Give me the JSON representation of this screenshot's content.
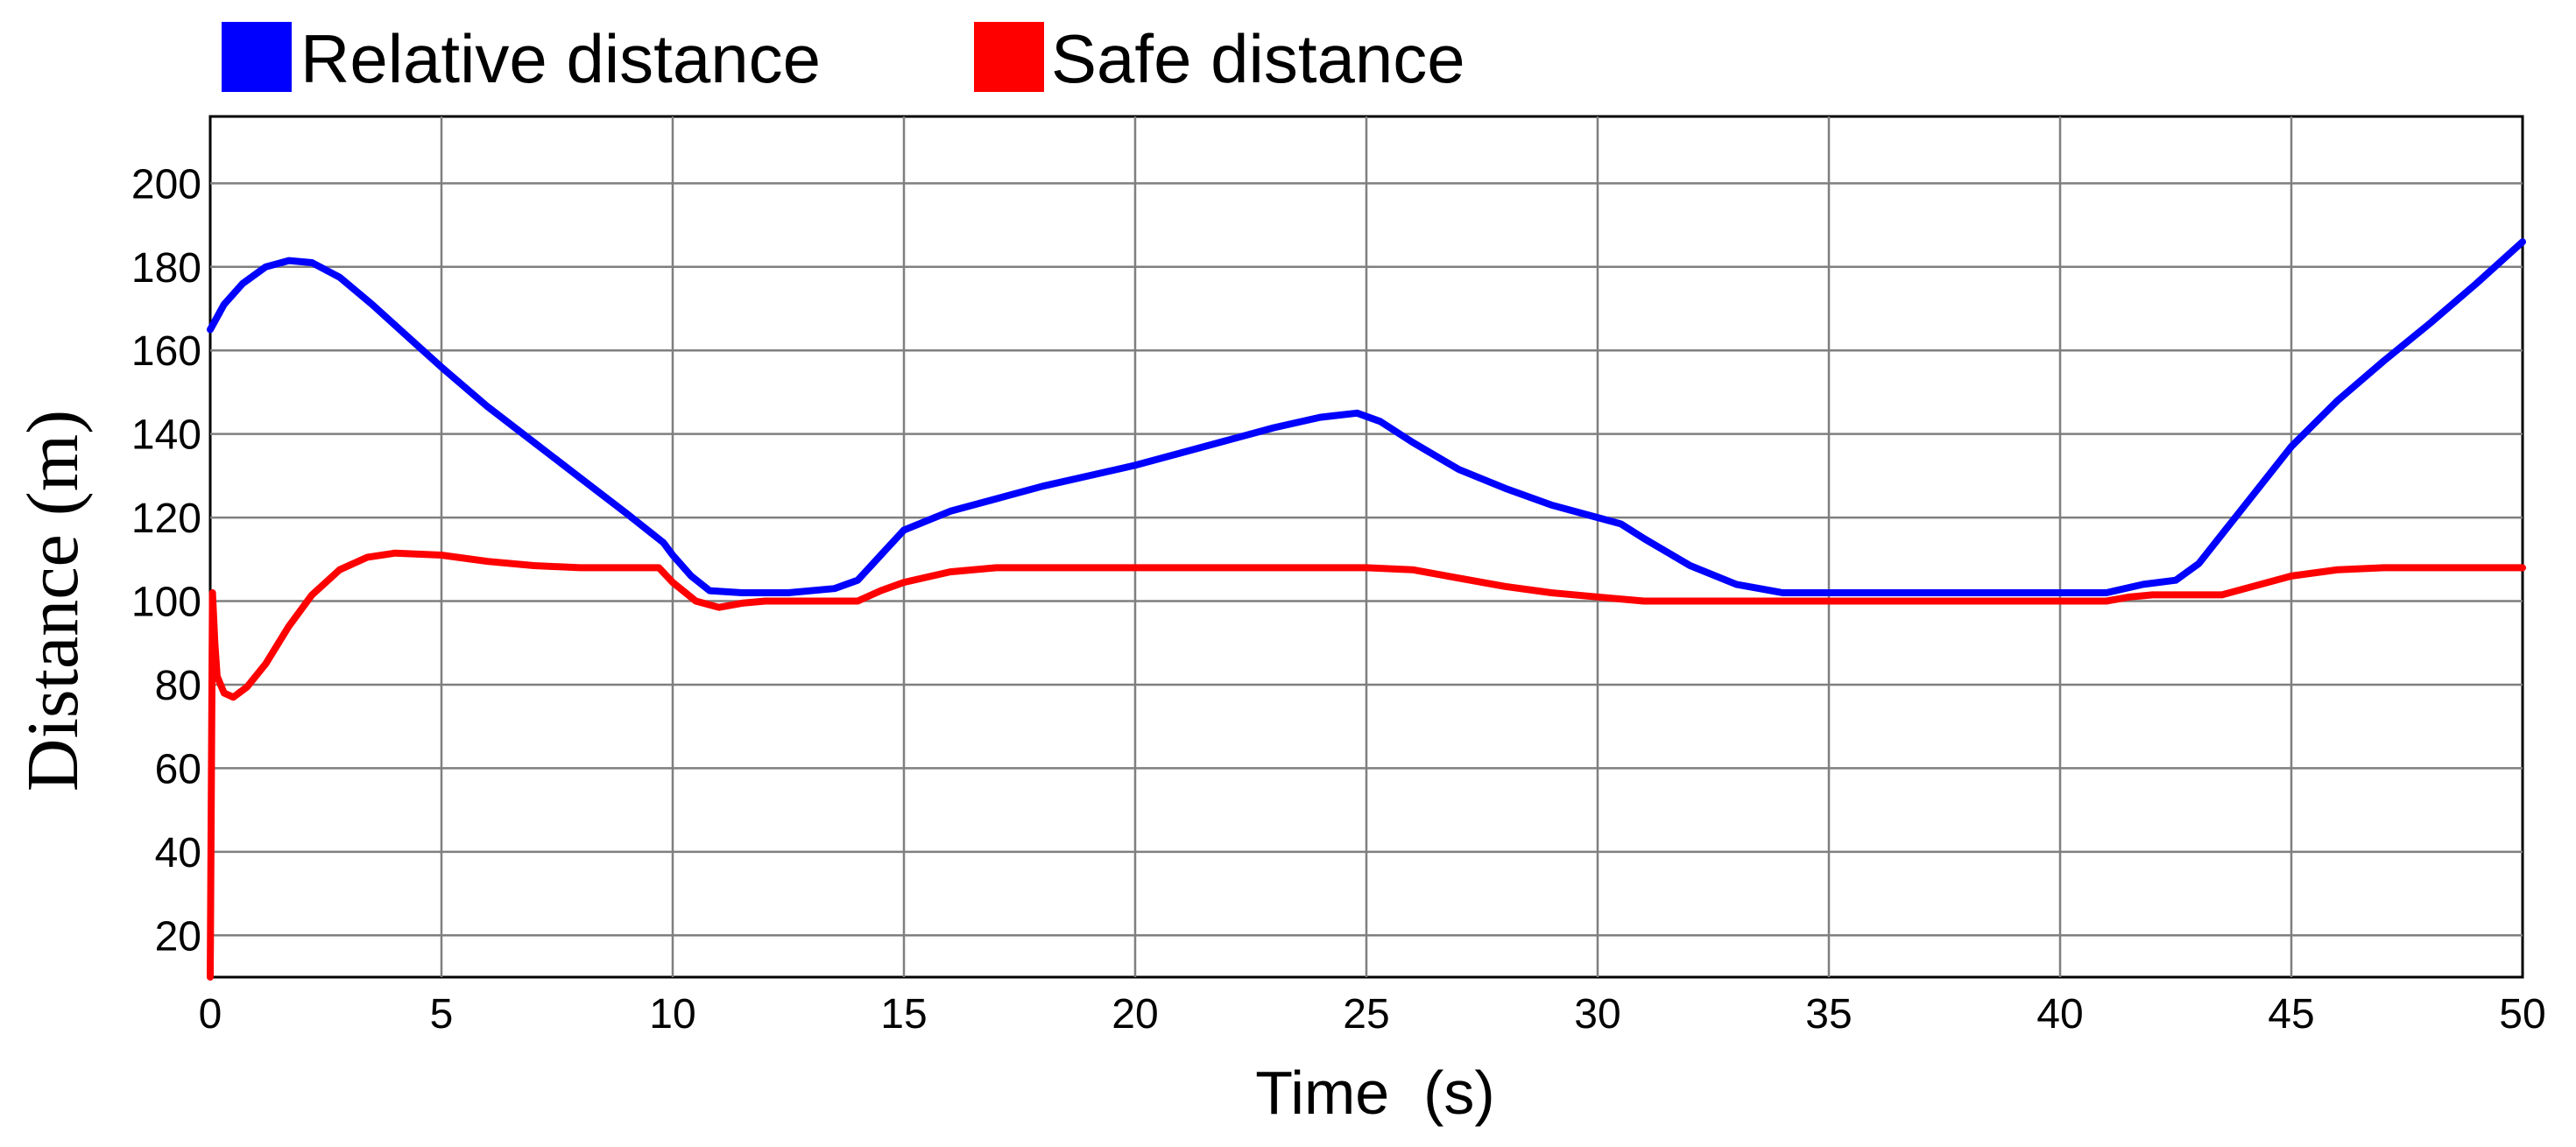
{
  "chart_data": {
    "type": "line",
    "title": "",
    "xlabel": "Time  (s)",
    "ylabel": "Distance (m)",
    "xlim": [
      0,
      50
    ],
    "ylim": [
      10,
      216
    ],
    "xticks": [
      0,
      5,
      10,
      15,
      20,
      25,
      30,
      35,
      40,
      45,
      50
    ],
    "yticks": [
      20,
      40,
      60,
      80,
      100,
      120,
      140,
      160,
      180,
      200
    ],
    "grid": true,
    "legend": "top-left, above plot, horizontal",
    "series": [
      {
        "name": "Relative distance",
        "color": "#0000ff",
        "points": [
          [
            0,
            165
          ],
          [
            0.3,
            171
          ],
          [
            0.7,
            176
          ],
          [
            1.2,
            180
          ],
          [
            1.7,
            181.5
          ],
          [
            2.2,
            181
          ],
          [
            2.8,
            177.5
          ],
          [
            3.5,
            171
          ],
          [
            4.5,
            161
          ],
          [
            5,
            156
          ],
          [
            6,
            146.5
          ],
          [
            7,
            138
          ],
          [
            8,
            129.5
          ],
          [
            9,
            121
          ],
          [
            9.8,
            114
          ],
          [
            10,
            111
          ],
          [
            10.4,
            106
          ],
          [
            10.8,
            102.5
          ],
          [
            11.5,
            102
          ],
          [
            12.5,
            102
          ],
          [
            13.5,
            103
          ],
          [
            14,
            105
          ],
          [
            14.5,
            111
          ],
          [
            15,
            117
          ],
          [
            16,
            121.5
          ],
          [
            17,
            124.5
          ],
          [
            18,
            127.5
          ],
          [
            19,
            130
          ],
          [
            20,
            132.5
          ],
          [
            21,
            135.5
          ],
          [
            22,
            138.5
          ],
          [
            23,
            141.5
          ],
          [
            24,
            144
          ],
          [
            24.8,
            145
          ],
          [
            25.3,
            143
          ],
          [
            26,
            138
          ],
          [
            27,
            131.5
          ],
          [
            28,
            127
          ],
          [
            29,
            123
          ],
          [
            30,
            120
          ],
          [
            30.5,
            118.5
          ],
          [
            31,
            115
          ],
          [
            32,
            108.5
          ],
          [
            33,
            104
          ],
          [
            34,
            102
          ],
          [
            35,
            102
          ],
          [
            37,
            102
          ],
          [
            39,
            102
          ],
          [
            41,
            102
          ],
          [
            41.8,
            104
          ],
          [
            42.5,
            105
          ],
          [
            43,
            109
          ],
          [
            44,
            123
          ],
          [
            45,
            137
          ],
          [
            46,
            148
          ],
          [
            47,
            157.5
          ],
          [
            48,
            166.5
          ],
          [
            49,
            176
          ],
          [
            50,
            186
          ]
        ]
      },
      {
        "name": "Safe distance",
        "color": "#ff0000",
        "points": [
          [
            0,
            10
          ],
          [
            0.05,
            102
          ],
          [
            0.1,
            90
          ],
          [
            0.15,
            82
          ],
          [
            0.3,
            78
          ],
          [
            0.5,
            77
          ],
          [
            0.8,
            79.5
          ],
          [
            1.2,
            85
          ],
          [
            1.7,
            94
          ],
          [
            2.2,
            101.5
          ],
          [
            2.8,
            107.5
          ],
          [
            3.4,
            110.5
          ],
          [
            4,
            111.5
          ],
          [
            5,
            111
          ],
          [
            6,
            109.5
          ],
          [
            7,
            108.5
          ],
          [
            8,
            108
          ],
          [
            9,
            108
          ],
          [
            9.7,
            108
          ],
          [
            10,
            104.5
          ],
          [
            10.5,
            100
          ],
          [
            11,
            98.5
          ],
          [
            11.5,
            99.5
          ],
          [
            12,
            100
          ],
          [
            13,
            100
          ],
          [
            14,
            100
          ],
          [
            14.5,
            102.5
          ],
          [
            15,
            104.5
          ],
          [
            16,
            107
          ],
          [
            17,
            108
          ],
          [
            18,
            108
          ],
          [
            20,
            108
          ],
          [
            22,
            108
          ],
          [
            24,
            108
          ],
          [
            25,
            108
          ],
          [
            26,
            107.5
          ],
          [
            27,
            105.5
          ],
          [
            28,
            103.5
          ],
          [
            29,
            102
          ],
          [
            30,
            101
          ],
          [
            31,
            100
          ],
          [
            33,
            100
          ],
          [
            35,
            100
          ],
          [
            37,
            100
          ],
          [
            39,
            100
          ],
          [
            41,
            100
          ],
          [
            41.5,
            101
          ],
          [
            42,
            101.5
          ],
          [
            43,
            101.5
          ],
          [
            43.5,
            101.5
          ],
          [
            44,
            103
          ],
          [
            45,
            106
          ],
          [
            46,
            107.5
          ],
          [
            47,
            108
          ],
          [
            48,
            108
          ],
          [
            49,
            108
          ],
          [
            50,
            108
          ]
        ]
      }
    ]
  }
}
